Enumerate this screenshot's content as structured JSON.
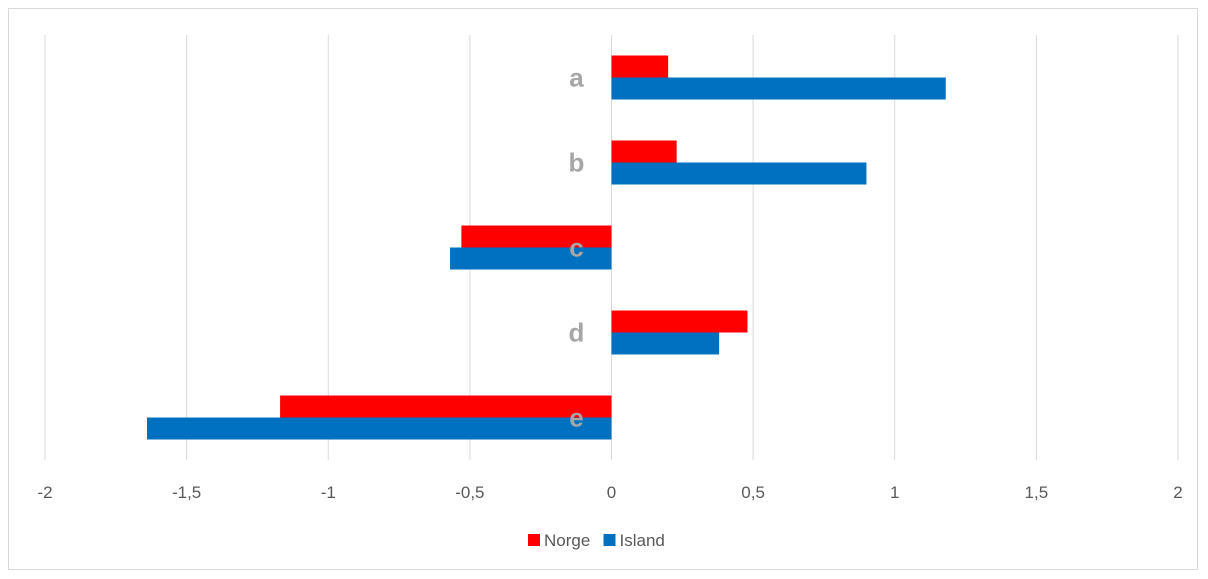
{
  "chart_data": {
    "type": "bar",
    "orientation": "horizontal",
    "categories": [
      "a",
      "b",
      "c",
      "d",
      "e"
    ],
    "series": [
      {
        "name": "Norge",
        "color": "#ff0000",
        "values": [
          0.2,
          0.23,
          -0.53,
          0.48,
          -1.17
        ]
      },
      {
        "name": "Island",
        "color": "#0070c0",
        "values": [
          1.18,
          0.9,
          -0.57,
          0.38,
          -1.64
        ]
      }
    ],
    "xlim": [
      -2,
      2
    ],
    "xticks": [
      -2,
      -1.5,
      -1,
      -0.5,
      0,
      0.5,
      1,
      1.5,
      2
    ],
    "xtick_labels": [
      "-2",
      "-1,5",
      "-1",
      "-0,5",
      "0",
      "0,5",
      "1",
      "1,5",
      "2"
    ],
    "title": "",
    "xlabel": "",
    "ylabel": "",
    "grid": "vertical",
    "legend_position": "bottom"
  }
}
